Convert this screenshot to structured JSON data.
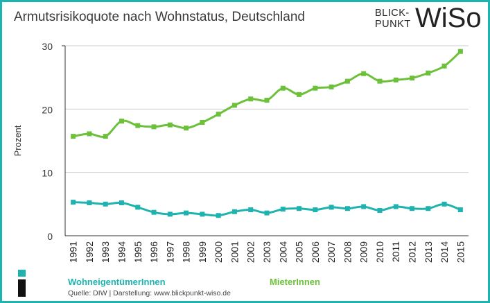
{
  "title": "Armutsrisikoquote nach Wohnstatus, Deutschland",
  "logo": {
    "line1": "BLICK-",
    "line2": "PUNKT",
    "big": "WiSo"
  },
  "source": "Quelle: DIW  |  Darstellung: www.blickpunkt-wiso.de",
  "colors": {
    "frame": "#1fb3b0",
    "owners": "#1fb3b0",
    "renters": "#6cc03a"
  },
  "chart_data": {
    "type": "line",
    "title": "Armutsrisikoquote nach Wohnstatus, Deutschland",
    "xlabel": "",
    "ylabel": "Prozent",
    "ylim": [
      0,
      30
    ],
    "yticks": [
      0,
      10,
      20,
      30
    ],
    "grid": true,
    "legend": "bottom",
    "x": [
      "1991",
      "1992",
      "1993",
      "1994",
      "1995",
      "1996",
      "1997",
      "1998",
      "1999",
      "2000",
      "2001",
      "2002",
      "2003",
      "2004",
      "2005",
      "2006",
      "2007",
      "2008",
      "2009",
      "2010",
      "2011",
      "2012",
      "2013",
      "2014",
      "2015"
    ],
    "series": [
      {
        "name": "WohneigentümerInnen",
        "color": "#1fb3b0",
        "values": [
          5.3,
          5.2,
          5.0,
          5.2,
          4.5,
          3.7,
          3.4,
          3.6,
          3.4,
          3.2,
          3.8,
          4.1,
          3.6,
          4.2,
          4.3,
          4.1,
          4.5,
          4.3,
          4.6,
          4.0,
          4.6,
          4.3,
          4.3,
          5.0,
          4.1
        ]
      },
      {
        "name": "MieterInnen",
        "color": "#6cc03a",
        "values": [
          15.7,
          16.1,
          15.7,
          18.1,
          17.4,
          17.2,
          17.5,
          17.0,
          17.9,
          19.2,
          20.6,
          21.6,
          21.4,
          23.3,
          22.3,
          23.3,
          23.5,
          24.4,
          25.6,
          24.4,
          24.6,
          24.9,
          25.7,
          26.8,
          29.1
        ]
      }
    ]
  }
}
